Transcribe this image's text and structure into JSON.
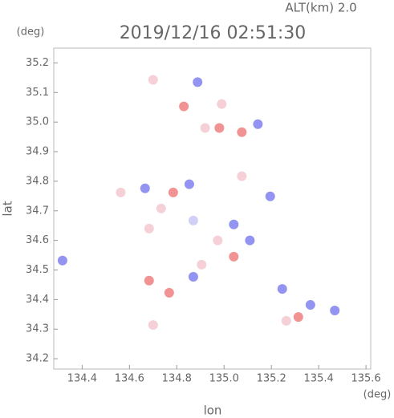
{
  "chart_data": {
    "type": "scatter",
    "alt_label": "ALT(km) 2.0",
    "title": "2019/12/16 02:51:30",
    "y_unit": "(deg)",
    "x_unit": "(deg)",
    "xlabel": "lon",
    "ylabel": "lat",
    "xlim": [
      134.28,
      135.62
    ],
    "ylim": [
      34.165,
      35.25
    ],
    "xticks": [
      134.4,
      134.6,
      134.8,
      {
        "value": 135.0,
        "label": "135.0"
      },
      135.2,
      135.4,
      135.6
    ],
    "yticks": [
      34.2,
      34.3,
      34.4,
      34.5,
      34.6,
      34.7,
      34.8,
      34.9,
      {
        "value": 35.0,
        "label": "35.0"
      },
      35.1,
      35.2
    ],
    "x": [
      134.888,
      134.83,
      134.99,
      135.075,
      134.92,
      134.666,
      134.563,
      134.785,
      134.853,
      134.734,
      134.87,
      135.041,
      134.973,
      135.109,
      134.905,
      134.87,
      135.041,
      135.195,
      135.075,
      135.246,
      135.314,
      135.263,
      135.365,
      135.468,
      134.317,
      134.683,
      134.768,
      134.7,
      134.683,
      135.143,
      134.98,
      134.7
    ],
    "y": [
      35.135,
      35.053,
      35.061,
      34.966,
      34.98,
      34.776,
      34.762,
      34.762,
      34.79,
      34.708,
      34.667,
      34.654,
      34.6,
      34.6,
      34.518,
      34.477,
      34.545,
      34.749,
      34.817,
      34.436,
      34.341,
      34.328,
      34.382,
      34.363,
      34.532,
      34.464,
      34.423,
      34.314,
      34.64,
      34.993,
      34.98,
      35.143
    ],
    "colors": [
      "#8080f0",
      "#f08080",
      "#f4c8d0",
      "#f08080",
      "#f4c8d0",
      "#8080f0",
      "#f4c8d0",
      "#f08080",
      "#8080f0",
      "#f4c8d0",
      "#c8c8f4",
      "#8080f0",
      "#f4c8d0",
      "#8080f0",
      "#f4c8d0",
      "#8080f0",
      "#f08080",
      "#8080f0",
      "#f4c8d0",
      "#8080f0",
      "#f08080",
      "#f4c8d0",
      "#8080f0",
      "#8080f0",
      "#8080f0",
      "#f08080",
      "#f08080",
      "#f4c8d0",
      "#f4c8d0",
      "#8080f0",
      "#f08080",
      "#f4c8d0"
    ]
  }
}
